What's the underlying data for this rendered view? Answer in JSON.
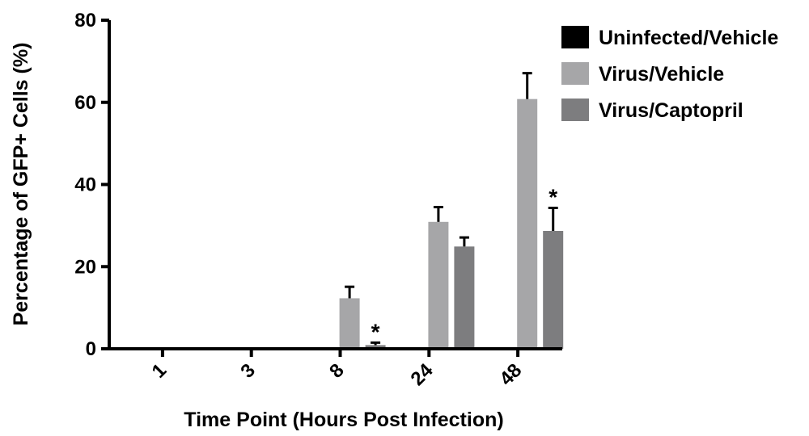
{
  "chart_data": {
    "type": "bar",
    "title": "",
    "xlabel": "Time Point (Hours Post Infection)",
    "ylabel": "Percentage of GFP+ Cells (%)",
    "ylim": [
      0,
      80
    ],
    "yticks": [
      0,
      20,
      40,
      60,
      80
    ],
    "categories": [
      "1",
      "3",
      "8",
      "24",
      "48"
    ],
    "series": [
      {
        "name": "Uninfected/Vehicle",
        "color": "#000000",
        "values": [
          0,
          0,
          0,
          0,
          0
        ],
        "errors": [
          0,
          0,
          0,
          0,
          0
        ]
      },
      {
        "name": "Virus/Vehicle",
        "color": "#a6a6a8",
        "values": [
          0,
          0,
          12.3,
          30.9,
          60.8
        ],
        "errors": [
          0,
          0,
          2.8,
          3.6,
          6.3
        ]
      },
      {
        "name": "Virus/Captopril",
        "color": "#7d7d7f",
        "values": [
          0,
          0,
          0.9,
          24.9,
          28.7
        ],
        "errors": [
          0,
          0,
          0.6,
          2.2,
          5.6
        ]
      }
    ],
    "annotations": [
      {
        "text": "*",
        "category": "8",
        "series": "Virus/Captopril"
      },
      {
        "text": "*",
        "category": "48",
        "series": "Virus/Captopril"
      }
    ],
    "grid": false,
    "legend": "top-right"
  }
}
